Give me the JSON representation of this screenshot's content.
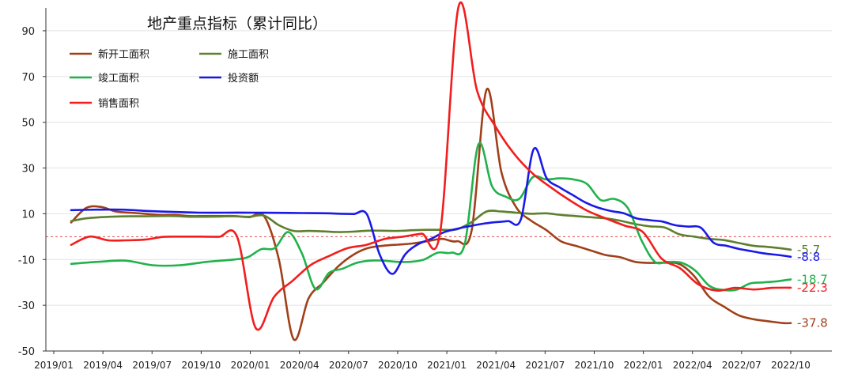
{
  "chart_data": {
    "type": "line",
    "title": "地产重点指标（累计同比）",
    "xlabel": "",
    "ylabel": "",
    "ylim": [
      -50,
      100
    ],
    "y_ticks": [
      90,
      70,
      50,
      30,
      10,
      -10,
      -30,
      -50
    ],
    "x_tick_labels": [
      "2019/01",
      "2019/04",
      "2019/07",
      "2019/10",
      "2020/01",
      "2020/04",
      "2020/07",
      "2020/10",
      "2021/01",
      "2021/04",
      "2021/07",
      "2021/10",
      "2022/01",
      "2022/04",
      "2022/07",
      "2022/10"
    ],
    "grid": "horizontal",
    "reference_line": 0,
    "legend_position": "top-left",
    "series": [
      {
        "name": "新开工面积",
        "color": "#a0401a",
        "end_label": "-37.8",
        "values": [
          6.2,
          12.5,
          13.0,
          11.0,
          10.5,
          10.0,
          9.5,
          9.5,
          9.0,
          9.0,
          9.0,
          9.0,
          8.5,
          9.0,
          -10.0,
          -44.9,
          -27.0,
          -20.0,
          -13.0,
          -8.0,
          -5.0,
          -4.0,
          -3.5,
          -3.0,
          -2.0,
          -1.0,
          -2.0,
          3.0,
          64.3,
          28.2,
          12.8,
          7.0,
          3.0,
          -2.0,
          -4.0,
          -6.0,
          -8.0,
          -9.0,
          -11.0,
          -11.5,
          -11.4,
          -12.0,
          -17.3,
          -26.3,
          -30.6,
          -34.4,
          -36.1,
          -37.0,
          -37.8,
          -37.8
        ]
      },
      {
        "name": "施工面积",
        "color": "#5e7f2e",
        "end_label": "-5.7",
        "values": [
          6.8,
          8.0,
          8.5,
          8.8,
          8.9,
          8.9,
          9.0,
          9.0,
          8.7,
          8.7,
          8.8,
          8.9,
          8.7,
          9.2,
          5.0,
          2.5,
          2.5,
          2.3,
          2.0,
          2.2,
          2.6,
          2.6,
          2.5,
          2.8,
          3.0,
          3.0,
          3.2,
          6.4,
          11.0,
          11.0,
          10.5,
          10.0,
          10.2,
          9.5,
          9.0,
          8.5,
          8.0,
          7.0,
          5.5,
          4.5,
          4.0,
          1.0,
          0.0,
          -1.0,
          -1.5,
          -2.8,
          -4.0,
          -4.5,
          -5.2,
          -5.7
        ]
      },
      {
        "name": "竣工面积",
        "color": "#21b24c",
        "end_label": "-18.7",
        "values": [
          -11.9,
          -11.0,
          -10.5,
          -12.5,
          -12.5,
          -11.0,
          -10.0,
          -9.0,
          -5.5,
          -5.0,
          2.0,
          -7.4,
          -22.9,
          -15.8,
          -14.0,
          -11.5,
          -10.5,
          -10.5,
          -11.0,
          -11.0,
          -10.0,
          -7.0,
          -7.0,
          -3.0,
          40.4,
          22.0,
          17.5,
          16.5,
          26.0,
          25.0,
          25.5,
          25.0,
          23.0,
          16.0,
          16.5,
          12.5,
          -1.5,
          -11.0,
          -11.0,
          -11.5,
          -15.0,
          -21.5,
          -23.3,
          -23.2,
          -20.5,
          -20.0,
          -19.5,
          -18.7
        ]
      },
      {
        "name": "投资额",
        "color": "#1a1ae6",
        "end_label": "-8.8",
        "values": [
          11.6,
          11.8,
          11.8,
          11.2,
          10.8,
          10.5,
          10.5,
          10.5,
          10.4,
          10.3,
          10.2,
          10.0,
          9.9,
          9.9,
          -7.7,
          -16.3,
          -7.7,
          -3.3,
          -1.0,
          1.9,
          3.4,
          4.6,
          5.6,
          6.3,
          6.8,
          7.6,
          38.3,
          25.6,
          21.6,
          18.3,
          15.0,
          12.7,
          11.2,
          10.2,
          8.0,
          7.2,
          6.6,
          5.0,
          4.4,
          3.9,
          -2.7,
          -4.0,
          -5.4,
          -6.4,
          -7.4,
          -8.0,
          -8.8
        ]
      },
      {
        "name": "销售面积",
        "color": "#f21d1d",
        "end_label": "-22.3",
        "values": [
          -3.6,
          0.0,
          -1.6,
          -1.6,
          -1.3,
          -0.1,
          0.0,
          0.0,
          -0.1,
          -0.2,
          -39.9,
          -26.3,
          -19.3,
          -12.3,
          -8.4,
          -5.0,
          -3.6,
          -1.0,
          0.0,
          1.3,
          2.0,
          104.9,
          63.8,
          48.1,
          36.3,
          27.7,
          21.5,
          16.0,
          11.2,
          7.9,
          4.8,
          1.9,
          -9.6,
          -13.8,
          -20.9,
          -23.6,
          -22.4,
          -23.1,
          -22.4,
          -22.3
        ]
      }
    ],
    "x_index": {
      "新开工面积": [
        0,
        2,
        4,
        6,
        8,
        10,
        12,
        14,
        16,
        18,
        20,
        22,
        24,
        26,
        28,
        30,
        32,
        34,
        36,
        38,
        40,
        42,
        44,
        46,
        48,
        50,
        52,
        54,
        56,
        58,
        60,
        62,
        64,
        66,
        68,
        70,
        72,
        74,
        76,
        78,
        80,
        82,
        84,
        86,
        88,
        90,
        92,
        94,
        96,
        97
      ],
      "施工面积": [
        0,
        2,
        4,
        6,
        8,
        10,
        12,
        14,
        16,
        18,
        20,
        22,
        24,
        26,
        28,
        30,
        32,
        34,
        36,
        38,
        40,
        42,
        44,
        46,
        48,
        50,
        52,
        54,
        56,
        58,
        60,
        62,
        64,
        66,
        68,
        70,
        72,
        74,
        76,
        78,
        80,
        82,
        84,
        86,
        88,
        90,
        92,
        94,
        96,
        97
      ],
      "竣工面积": [
        0,
        4,
        8,
        12,
        16,
        20,
        24,
        26,
        28,
        30,
        32,
        34,
        36,
        38,
        40,
        42,
        44,
        46,
        48,
        50,
        52,
        54,
        56,
        58,
        60,
        62,
        64,
        66,
        68,
        70,
        72,
        74,
        76,
        78,
        80,
        82,
        84,
        86,
        88,
        90,
        92,
        94,
        96,
        98,
        100,
        102,
        104,
        106
      ],
      "投资额": [
        0,
        4,
        8,
        12,
        16,
        20,
        24,
        28,
        32,
        36,
        40,
        42,
        44,
        46,
        48,
        50,
        52,
        54,
        56,
        58,
        60,
        62,
        64,
        66,
        68,
        70,
        72,
        74,
        76,
        78,
        80,
        82,
        84,
        86,
        88,
        90,
        92,
        94,
        96,
        98,
        100,
        102,
        104,
        106,
        108,
        110,
        112
      ],
      "销售面积": [
        0,
        4,
        8,
        12,
        16,
        20,
        24,
        28,
        32,
        36,
        40,
        44,
        48,
        52,
        56,
        60,
        64,
        68,
        72,
        76,
        80,
        84,
        88,
        92,
        96,
        100,
        104,
        108,
        112,
        116,
        120,
        124,
        128,
        132,
        136,
        140,
        144,
        148,
        152,
        156
      ]
    }
  }
}
